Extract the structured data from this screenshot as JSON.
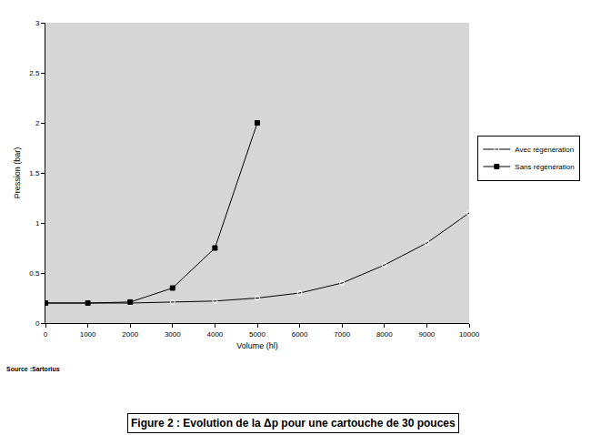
{
  "chart_data": {
    "type": "line",
    "title": "Figure 2 : Evolution de la Δp pour une cartouche de 30 pouces",
    "annotations": [
      "Source :Sartorius"
    ],
    "x_label": "Volume (hl)",
    "y_label": "Pression (bar)",
    "series": [
      {
        "name": "Avec régénération",
        "color": "#000000",
        "marker": "circle-open",
        "line_style": "solid",
        "x": [
          0,
          1000,
          2000,
          3000,
          4000,
          5000,
          6000,
          7000,
          8000,
          9000,
          10000
        ],
        "values": [
          0.2,
          0.2,
          0.2,
          0.21,
          0.22,
          0.25,
          0.3,
          0.4,
          0.58,
          0.8,
          1.1
        ]
      },
      {
        "name": "Sans régénération",
        "color": "#000000",
        "marker": "square",
        "line_style": "solid",
        "x": [
          0,
          1000,
          2000,
          3000,
          4000,
          5000
        ],
        "values": [
          0.2,
          0.2,
          0.21,
          0.35,
          0.75,
          2.0
        ]
      }
    ],
    "xlim": [
      0,
      10000
    ],
    "xticks": [
      0,
      1000,
      2000,
      3000,
      4000,
      5000,
      6000,
      7000,
      8000,
      9000,
      10000
    ],
    "ylim": [
      0,
      3
    ],
    "yticks": [
      0,
      0.5,
      1,
      1.5,
      2,
      2.5,
      3
    ],
    "grid": false,
    "legend": "right"
  }
}
